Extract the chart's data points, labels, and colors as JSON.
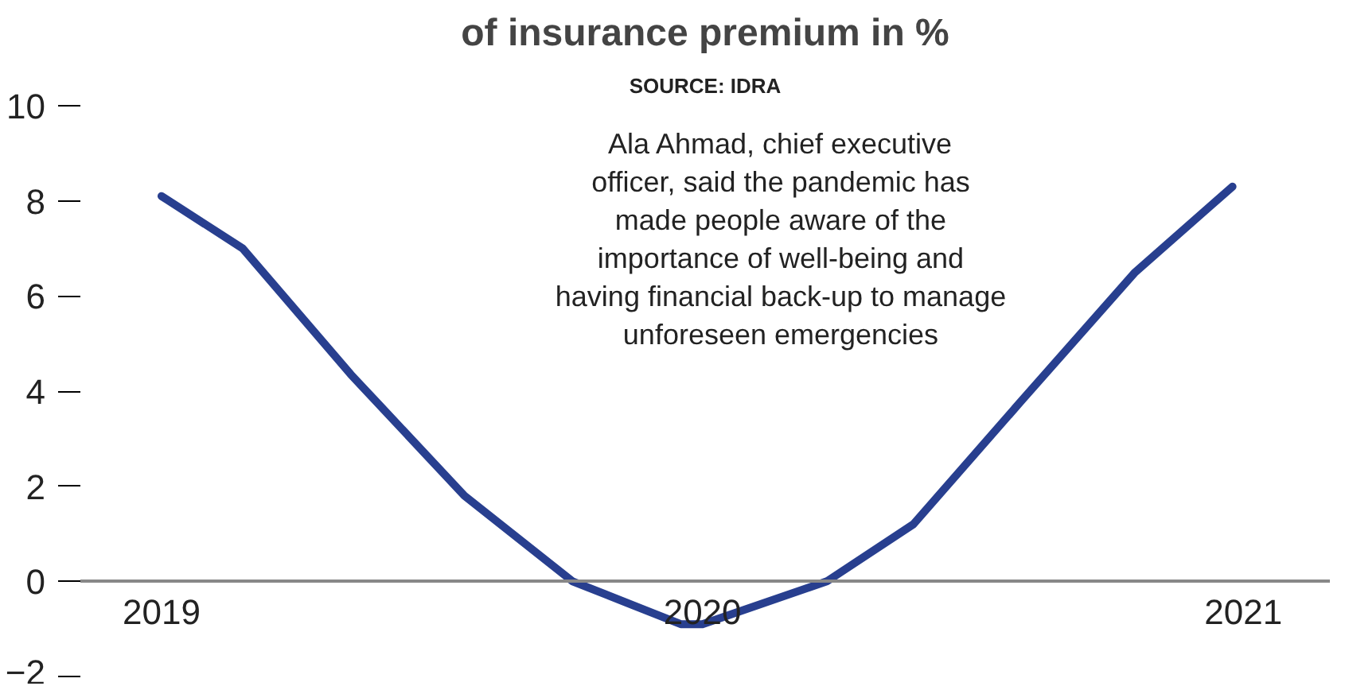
{
  "chart_data": {
    "type": "line",
    "title": "of insurance premium in %",
    "annotations": [
      "SOURCE: IDRA",
      "Ala Ahmad, chief executive officer, said the pandemic has made people aware of the importance of well-being and having financial back-up to manage unforeseen emergencies"
    ],
    "x": [
      2019.0,
      2019.15,
      2019.35,
      2019.56,
      2019.76,
      2019.96,
      2020.0,
      2020.23,
      2020.39,
      2020.59,
      2020.8,
      2020.98
    ],
    "series": [
      {
        "color": "#283f8f",
        "values": [
          8.1,
          7.0,
          4.35,
          1.8,
          0,
          -0.9,
          -0.9,
          0,
          1.2,
          3.8,
          6.5,
          8.3
        ]
      }
    ],
    "xlim": [
      2018.85,
      2021.16
    ],
    "ylim": [
      -2,
      10
    ],
    "xticks": [
      2019,
      2020,
      2021
    ],
    "yticks": [
      -2,
      0,
      2,
      4,
      6,
      8,
      10
    ],
    "grid": false,
    "line_style": "solid"
  }
}
